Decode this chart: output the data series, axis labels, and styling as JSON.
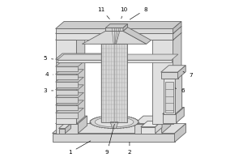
{
  "line_color": "#666666",
  "lw": 0.6,
  "figsize": [
    3.0,
    2.0
  ],
  "dpi": 100,
  "labels_info": [
    [
      1,
      0.18,
      0.055,
      0.32,
      0.135
    ],
    [
      2,
      0.55,
      0.055,
      0.55,
      0.135
    ],
    [
      3,
      0.025,
      0.44,
      0.09,
      0.44
    ],
    [
      4,
      0.035,
      0.54,
      0.09,
      0.54
    ],
    [
      5,
      0.025,
      0.64,
      0.09,
      0.635
    ],
    [
      6,
      0.88,
      0.44,
      0.82,
      0.46
    ],
    [
      7,
      0.93,
      0.535,
      0.87,
      0.565
    ],
    [
      8,
      0.65,
      0.945,
      0.54,
      0.875
    ],
    [
      9,
      0.41,
      0.055,
      0.46,
      0.245
    ],
    [
      10,
      0.515,
      0.945,
      0.495,
      0.875
    ],
    [
      11,
      0.375,
      0.945,
      0.435,
      0.875
    ]
  ]
}
